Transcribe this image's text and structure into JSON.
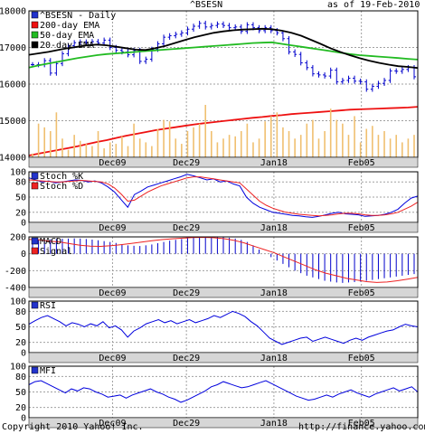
{
  "header": {
    "title": "^BSESN",
    "date": "as of 19-Feb-2010"
  },
  "footer": {
    "copyright": "Copyright 2010 Yahoo! Inc.",
    "url": "http://finance.yahoo.com/"
  },
  "colors": {
    "ema200": "#ee1111",
    "ema50": "#22bb22",
    "ema20": "#000000",
    "price": "#0000cc",
    "volume": "#f0c070",
    "stochK": "#0000dd",
    "stochD": "#ee2222",
    "macd": "#0000cc",
    "signal": "#ee2222",
    "grid": "#a0a0a0",
    "panelBorder": "#000000",
    "dateBar": "#d6d6d6",
    "legendBlue": "#2233cc"
  },
  "x_labels": [
    "Dec09",
    "Dec29",
    "Jan18",
    "Feb05"
  ],
  "chart_data": [
    {
      "type": "line",
      "title": "^BSESN",
      "ylim": [
        14000,
        18000
      ],
      "yticks": [
        "14000",
        "15000",
        "16000",
        "17000",
        "18000"
      ],
      "legend_position": "top-left",
      "series": [
        {
          "name": "^BSESN - Daily",
          "kind": "ohlc_bars",
          "color": "#0000cc",
          "close": [
            16530,
            16530,
            16640,
            16300,
            16560,
            16830,
            17050,
            17130,
            17150,
            17130,
            17160,
            17120,
            17200,
            17000,
            16920,
            16880,
            16800,
            16920,
            16620,
            16680,
            16950,
            17100,
            17280,
            17320,
            17360,
            17400,
            17500,
            17580,
            17660,
            17560,
            17600,
            17640,
            17600,
            17540,
            17560,
            17440,
            17620,
            17540,
            17460,
            17540,
            17460,
            17400,
            17240,
            16880,
            16810,
            16580,
            16450,
            16280,
            16250,
            16220,
            16380,
            16060,
            16100,
            16160,
            16080,
            16060,
            15860,
            15940,
            16020,
            16100,
            16360,
            16350,
            16400,
            16450,
            16200
          ]
        },
        {
          "name": "200-day EMA",
          "color": "#ee1111",
          "values": [
            14050,
            14100,
            14150,
            14200,
            14250,
            14300,
            14360,
            14420,
            14470,
            14530,
            14590,
            14640,
            14690,
            14740,
            14780,
            14820,
            14860,
            14900,
            14930,
            14960,
            14990,
            15020,
            15050,
            15080,
            15100,
            15130,
            15150,
            15180,
            15200,
            15220,
            15240,
            15260,
            15280,
            15300,
            15310,
            15320,
            15330,
            15340,
            15350,
            15360,
            15380
          ]
        },
        {
          "name": "50-day EMA",
          "color": "#22bb22",
          "values": [
            16450,
            16510,
            16560,
            16610,
            16660,
            16710,
            16750,
            16790,
            16820,
            16840,
            16860,
            16880,
            16900,
            16920,
            16940,
            16960,
            16980,
            17000,
            17020,
            17040,
            17060,
            17080,
            17100,
            17120,
            17130,
            17140,
            17100,
            17060,
            17020,
            16980,
            16940,
            16900,
            16860,
            16820,
            16790,
            16770,
            16750,
            16730,
            16710,
            16690,
            16670
          ]
        },
        {
          "name": "20-day EMA",
          "color": "#000000",
          "values": [
            16800,
            16840,
            16880,
            16930,
            16980,
            17020,
            17060,
            17080,
            17060,
            17020,
            16980,
            16940,
            16930,
            16980,
            17040,
            17120,
            17200,
            17280,
            17340,
            17400,
            17440,
            17470,
            17490,
            17500,
            17510,
            17500,
            17460,
            17400,
            17320,
            17210,
            17100,
            16980,
            16880,
            16790,
            16710,
            16640,
            16580,
            16530,
            16490,
            16470,
            16440
          ]
        },
        {
          "name": "Volume",
          "kind": "bars",
          "color": "#f0c070",
          "values": [
            5,
            45,
            40,
            35,
            60,
            25,
            10,
            30,
            22,
            18,
            15,
            35,
            12,
            20,
            18,
            28,
            15,
            45,
            25,
            20,
            15,
            38,
            50,
            48,
            25,
            18,
            35,
            40,
            45,
            70,
            35,
            20,
            25,
            30,
            28,
            35,
            45,
            20,
            25,
            48,
            55,
            60,
            40,
            35,
            25,
            30,
            45,
            50,
            25,
            35,
            65,
            50,
            45,
            30,
            55,
            20,
            38,
            42,
            30,
            35,
            25,
            30,
            20,
            25,
            30
          ]
        }
      ]
    },
    {
      "type": "line",
      "title": "Stoch",
      "ylim": [
        0,
        100
      ],
      "yticks": [
        "0",
        "20",
        "50",
        "80",
        "100"
      ],
      "series": [
        {
          "name": "Stoch %K",
          "color": "#0000dd",
          "values": [
            88,
            84,
            80,
            82,
            78,
            80,
            82,
            84,
            83,
            80,
            82,
            78,
            70,
            60,
            45,
            30,
            55,
            62,
            70,
            74,
            78,
            82,
            86,
            90,
            95,
            92,
            88,
            84,
            86,
            80,
            82,
            76,
            72,
            50,
            38,
            30,
            25,
            20,
            18,
            16,
            14,
            13,
            11,
            10,
            12,
            15,
            18,
            20,
            17,
            16,
            15,
            12,
            13,
            14,
            16,
            20,
            26,
            38,
            48,
            52
          ]
        },
        {
          "name": "Stoch %D",
          "color": "#ee2222",
          "values": [
            84,
            83,
            82,
            81,
            80,
            80,
            81,
            82,
            83,
            82,
            81,
            80,
            76,
            68,
            56,
            42,
            44,
            52,
            60,
            66,
            72,
            76,
            80,
            84,
            88,
            90,
            90,
            88,
            86,
            84,
            82,
            80,
            78,
            66,
            54,
            42,
            34,
            28,
            24,
            20,
            18,
            16,
            15,
            14,
            13,
            14,
            15,
            17,
            18,
            18,
            17,
            15,
            14,
            14,
            15,
            17,
            20,
            26,
            32,
            40
          ]
        }
      ]
    },
    {
      "type": "line",
      "title": "MACD",
      "ylim": [
        -400,
        200
      ],
      "yticks": [
        "-400",
        "-200",
        "0",
        "200"
      ],
      "series": [
        {
          "name": "MACD",
          "kind": "bars",
          "color": "#0000cc",
          "values": [
            160,
            165,
            170,
            172,
            175,
            178,
            180,
            182,
            180,
            175,
            168,
            160,
            150,
            140,
            128,
            110,
            100,
            95,
            92,
            100,
            110,
            125,
            140,
            155,
            165,
            175,
            185,
            190,
            195,
            200,
            200,
            198,
            195,
            190,
            180,
            165,
            140,
            100,
            50,
            0,
            -40,
            -80,
            -120,
            -160,
            -200,
            -230,
            -260,
            -280,
            -300,
            -320,
            -330,
            -340,
            -345,
            -340,
            -335,
            -330,
            -320,
            -310,
            -300,
            -290,
            -280,
            -270,
            -260,
            -250,
            -240
          ]
        },
        {
          "name": "Signal",
          "color": "#ee2222",
          "values": [
            170,
            165,
            150,
            140,
            120,
            100,
            90,
            88,
            95,
            108,
            122,
            138,
            155,
            168,
            178,
            185,
            192,
            195,
            190,
            180,
            160,
            130,
            90,
            50,
            10,
            -40,
            -90,
            -140,
            -190,
            -230,
            -260,
            -290,
            -310,
            -330,
            -340,
            -335,
            -320,
            -300,
            -280
          ]
        }
      ]
    },
    {
      "type": "line",
      "title": "RSI",
      "ylim": [
        0,
        100
      ],
      "yticks": [
        "0",
        "20",
        "50",
        "80",
        "100"
      ],
      "series": [
        {
          "name": "RSI",
          "color": "#0000dd",
          "values": [
            55,
            62,
            68,
            72,
            66,
            60,
            52,
            58,
            55,
            50,
            56,
            52,
            60,
            48,
            52,
            44,
            30,
            42,
            48,
            56,
            60,
            64,
            58,
            62,
            56,
            60,
            64,
            58,
            62,
            66,
            72,
            68,
            74,
            80,
            76,
            70,
            60,
            52,
            40,
            28,
            22,
            16,
            20,
            24,
            28,
            30,
            22,
            26,
            30,
            26,
            22,
            18,
            24,
            28,
            24,
            30,
            34,
            38,
            42,
            44,
            50,
            55,
            52,
            50
          ]
        }
      ]
    },
    {
      "type": "line",
      "title": "MFI",
      "ylim": [
        0,
        100
      ],
      "yticks": [
        "0",
        "20",
        "50",
        "80",
        "100"
      ],
      "series": [
        {
          "name": "MFI",
          "color": "#0000dd",
          "values": [
            64,
            70,
            72,
            66,
            60,
            54,
            48,
            56,
            52,
            58,
            56,
            50,
            46,
            40,
            42,
            44,
            38,
            44,
            48,
            52,
            56,
            50,
            46,
            40,
            36,
            30,
            34,
            40,
            46,
            52,
            60,
            64,
            70,
            66,
            62,
            58,
            60,
            64,
            68,
            72,
            66,
            60,
            54,
            48,
            42,
            38,
            34,
            36,
            40,
            44,
            40,
            46,
            50,
            54,
            48,
            44,
            40,
            46,
            50,
            54,
            58,
            52,
            56,
            60,
            50
          ]
        }
      ]
    }
  ]
}
